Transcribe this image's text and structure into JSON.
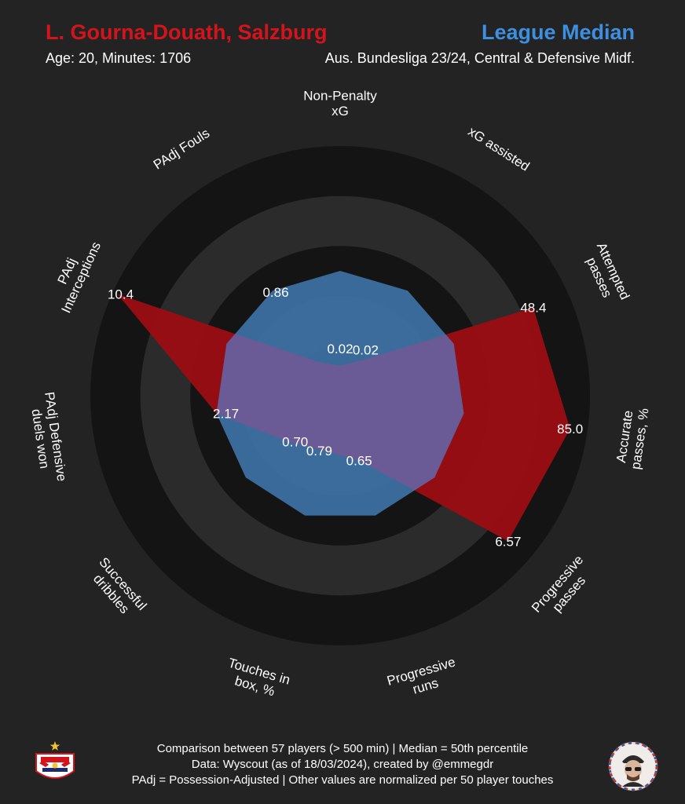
{
  "header": {
    "player_title": "L. Gourna-Douath, Salzburg",
    "player_subtitle": "Age: 20, Minutes: 1706",
    "comparison_title": "League Median",
    "comparison_subtitle": "Aus. Bundesliga 23/24, Central & Defensive Midf."
  },
  "footer": {
    "line1": "Comparison between 57 players (> 500 min) | Median = 50th percentile",
    "line2": "Data: Wyscout (as of 18/03/2024), created by @emmegdr",
    "line3": "PAdj = Possession-Adjusted | Other values are normalized per 50 player touches"
  },
  "colors": {
    "player": "#9b0d12",
    "median": "#3e73a8",
    "overlap": "#6a5a96",
    "background": "#232323",
    "ring_dark": "#141414",
    "ring_light": "#2b2b2b"
  },
  "logos": {
    "left": "red-bull-salzburg-logo",
    "right": "author-avatar-logo"
  },
  "chart_data": {
    "type": "radar",
    "title": "",
    "categories": [
      "Non-Penalty xG",
      "xG assisted",
      "Attempted passes",
      "Accurate passes, %",
      "Progressive passes",
      "Progressive runs",
      "Touches in box, %",
      "Successful dribbles",
      "PAdj Defensive duels won",
      "PAdj Interceptions",
      "PAdj Fouls"
    ],
    "series": [
      {
        "name": "L. Gourna-Douath, Salzburg",
        "percentile": [
          0.12,
          0.17,
          0.85,
          0.93,
          0.89,
          0.27,
          0.23,
          0.28,
          0.5,
          0.98,
          0.16
        ],
        "labels": [
          "0.02",
          "0.02",
          "48.4",
          "85.0",
          "6.57",
          "0.65",
          "0.79",
          "0.70",
          "2.17",
          "10.4",
          "0.86"
        ],
        "label_mask": [
          true,
          true,
          true,
          true,
          true,
          true,
          true,
          true,
          true,
          true,
          false
        ]
      },
      {
        "name": "League Median",
        "percentile": [
          0.5,
          0.5,
          0.5,
          0.5,
          0.5,
          0.5,
          0.5,
          0.5,
          0.5,
          0.5,
          0.5
        ],
        "labels": [
          "",
          "",
          "",
          "",
          "",
          "",
          "",
          "",
          "",
          "",
          "0.86"
        ],
        "label_mask": [
          false,
          false,
          false,
          false,
          false,
          false,
          false,
          false,
          false,
          false,
          true
        ]
      }
    ],
    "rlim": [
      0,
      1
    ],
    "rings": 5,
    "grid": true,
    "legend": "none"
  }
}
